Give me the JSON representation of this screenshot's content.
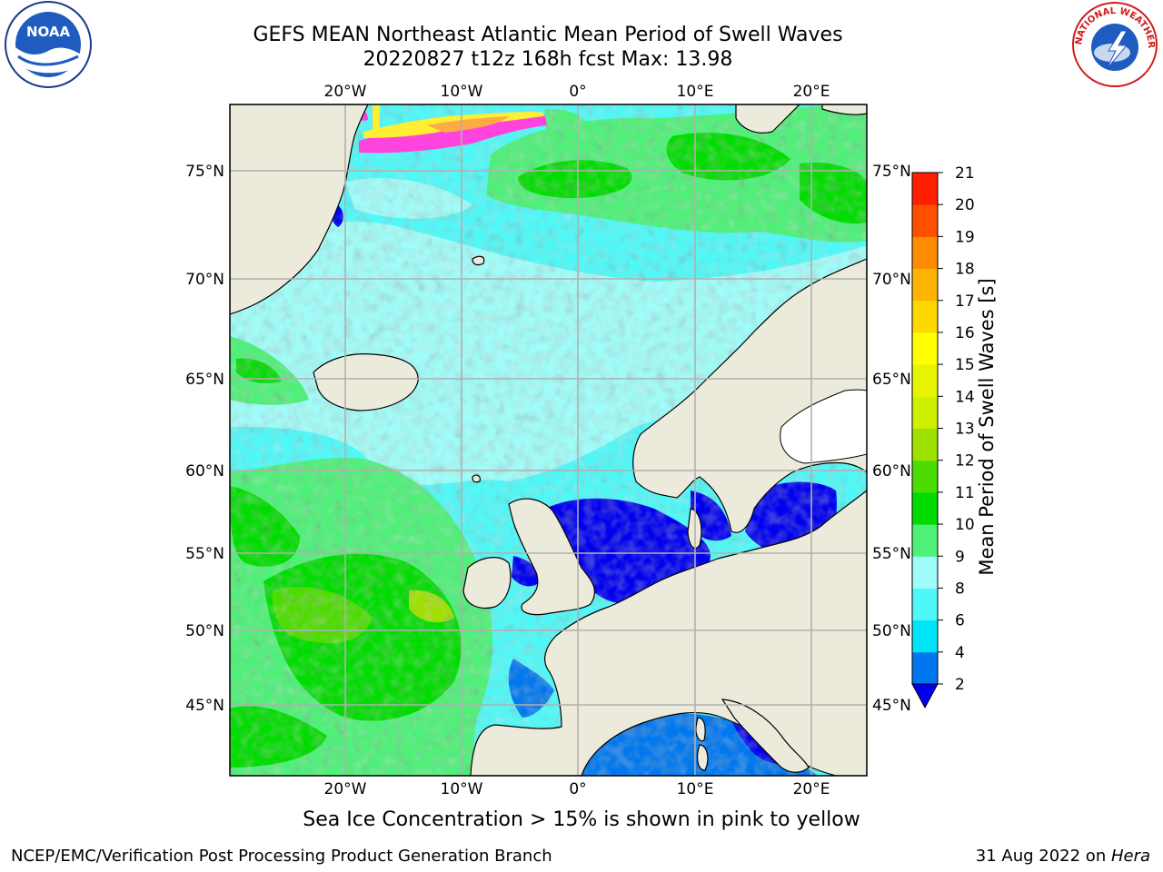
{
  "title": {
    "line1": "GEFS MEAN Northeast Atlantic Mean Period of Swell Waves",
    "line2": "20220827 t12z 168h fcst   Max: 13.98"
  },
  "logos": {
    "noaa": {
      "icon": "noaa-logo-icon",
      "text": "NOAA"
    },
    "nws": {
      "icon": "nws-logo-icon",
      "text": "NATIONAL WEATHER SERVICE"
    }
  },
  "map": {
    "lon_labels": [
      "20°W",
      "10°W",
      "0°",
      "10°E",
      "20°E"
    ],
    "lat_labels_left": [
      "75°N",
      "70°N",
      "65°N",
      "60°N",
      "55°N",
      "50°N",
      "45°N"
    ],
    "lat_labels_right": [
      "75°N",
      "70°N",
      "65°N",
      "60°N",
      "55°N",
      "50°N",
      "45°N"
    ],
    "colors": {
      "land": "#ecebdb",
      "gridline": "#b0b0b0"
    }
  },
  "colorbar": {
    "label": "Mean Period of Swell Waves [s]",
    "ticks": [
      "2",
      "4",
      "6",
      "8",
      "9",
      "10",
      "11",
      "12",
      "13",
      "14",
      "15",
      "16",
      "17",
      "18",
      "19",
      "20",
      "21"
    ],
    "colors": [
      "#0077ee",
      "#00e4f8",
      "#4ff8f8",
      "#9ffcf8",
      "#4ef078",
      "#00dc00",
      "#4cdc00",
      "#a0e000",
      "#ccf000",
      "#e6f400",
      "#ffff00",
      "#ffd800",
      "#ffb400",
      "#ff8c00",
      "#ff5000",
      "#ff2000",
      "#ff0000"
    ],
    "under_color": "#0000ee"
  },
  "footer": {
    "note": "Sea Ice Concentration > 15% is shown in pink to yellow",
    "left": "NCEP/EMC/Verification Post Processing Product Generation Branch",
    "right_date": "31 Aug 2022 on ",
    "right_host": "Hera"
  }
}
